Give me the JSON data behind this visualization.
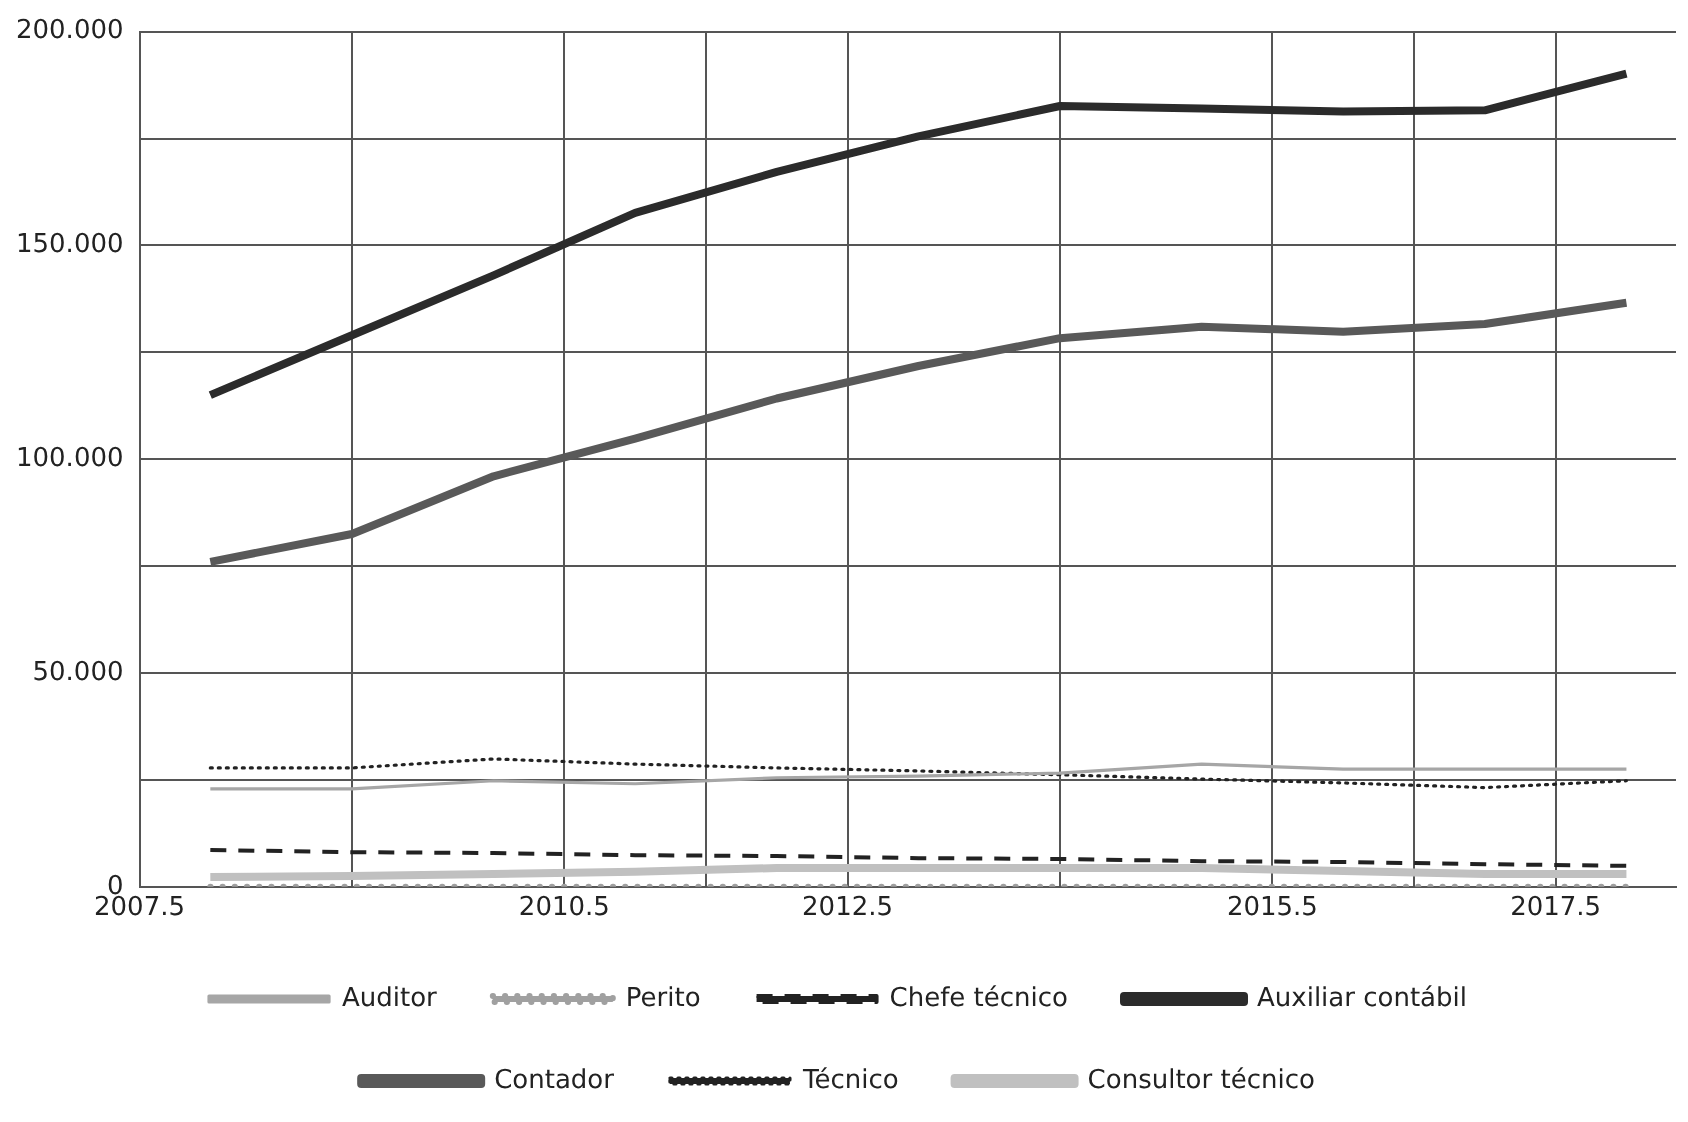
{
  "chart_data": {
    "type": "line",
    "x": [
      2008,
      2009,
      2010,
      2011,
      2012,
      2013,
      2014,
      2015,
      2016,
      2017,
      2018
    ],
    "series": [
      {
        "name": "Auditor",
        "color": "#a6a6a6",
        "line_style": "solid",
        "values": [
          22.9,
          22.9,
          24.8,
          24.1,
          25.5,
          25.9,
          26.6,
          28.7,
          27.5,
          27.5,
          27.5
        ]
      },
      {
        "name": "Perito",
        "color": "#a0a0a0",
        "line_style": "dotted",
        "values": [
          0,
          0,
          0,
          0,
          0,
          0,
          0,
          0,
          0,
          0,
          0
        ]
      },
      {
        "name": "Chefe técnico",
        "color": "#222222",
        "line_style": "dashed",
        "values": [
          8.6,
          8.1,
          7.9,
          7.4,
          7.2,
          6.7,
          6.5,
          6.0,
          5.8,
          5.3,
          4.9
        ]
      },
      {
        "name": "Auxiliar contábil",
        "color": "#2b2b2b",
        "line_style": "solid",
        "values": [
          115.0,
          129.0,
          143.0,
          157.6,
          167.2,
          175.5,
          182.6,
          182.0,
          181.3,
          181.6,
          190.2
        ]
      },
      {
        "name": "Contador",
        "color": "#595959",
        "line_style": "solid",
        "values": [
          76.0,
          82.5,
          96.0,
          104.8,
          114.2,
          121.8,
          128.3,
          131.0,
          129.8,
          131.6,
          136.6
        ]
      },
      {
        "name": "Técnico",
        "color": "#222222",
        "line_style": "dotted",
        "values": [
          27.8,
          27.8,
          29.9,
          28.7,
          27.8,
          27.1,
          26.2,
          25.2,
          24.3,
          23.2,
          24.8
        ]
      },
      {
        "name": "Consultor técnico",
        "color": "#c0c0c0",
        "line_style": "solid",
        "values": [
          2.3,
          2.5,
          3.0,
          3.5,
          4.4,
          4.4,
          4.4,
          4.4,
          3.7,
          3.0,
          3.0
        ]
      }
    ],
    "xlim": [
      2007.5,
      2018.35
    ],
    "xticks": [
      {
        "value": 2007.5,
        "label": "2007.5"
      },
      {
        "value": 2009,
        "label": null
      },
      {
        "value": 2010.5,
        "label": "2010.5"
      },
      {
        "value": 2011.5,
        "label": null
      },
      {
        "value": 2012.5,
        "label": "2012.5"
      },
      {
        "value": 2014,
        "label": null
      },
      {
        "value": 2015.5,
        "label": "2015.5"
      },
      {
        "value": 2016.5,
        "label": null
      },
      {
        "value": 2017.5,
        "label": "2017.5"
      }
    ],
    "ylim": [
      0,
      200
    ],
    "yticks": [
      0,
      {
        "value": 25,
        "label": null
      },
      {
        "value": 50,
        "label": "50.000"
      },
      {
        "value": 75,
        "label": null
      },
      {
        "value": 100,
        "label": "100.000"
      },
      {
        "value": 125,
        "label": null
      },
      {
        "value": 150,
        "label": "150.000"
      },
      {
        "value": 175,
        "label": null
      },
      {
        "value": 200,
        "label": "200.000"
      }
    ],
    "grid": true,
    "legend": "bottom",
    "marker": "none"
  }
}
